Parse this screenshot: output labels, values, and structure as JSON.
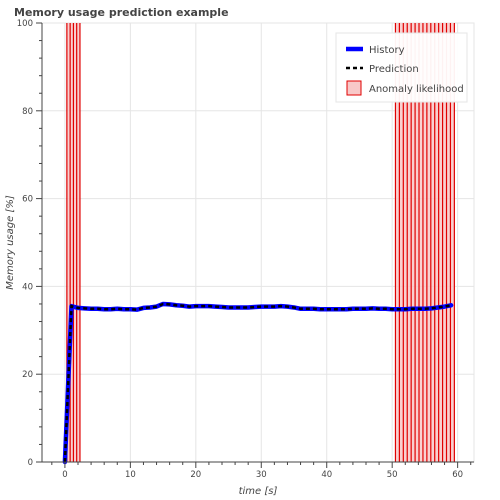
{
  "chart_data": {
    "type": "line",
    "title": "Memory usage prediction example",
    "xlabel": "time [s]",
    "ylabel": "Memory usage [%]",
    "xlim": [
      -3.5,
      62.5
    ],
    "ylim": [
      0,
      100
    ],
    "x_ticks": [
      0,
      10,
      20,
      30,
      40,
      50,
      60
    ],
    "y_ticks": [
      0,
      20,
      40,
      60,
      80,
      100
    ],
    "grid": true,
    "legend_position": "top-right",
    "series": [
      {
        "name": "History",
        "kind": "line",
        "color": "#0000ff",
        "x": [
          0,
          1,
          2,
          3,
          4,
          5,
          6,
          7,
          8,
          9,
          10,
          11,
          12,
          13,
          14,
          15,
          16,
          17,
          18,
          19,
          20,
          21,
          22,
          23,
          24,
          25,
          26,
          27,
          28,
          29,
          30,
          31,
          32,
          33,
          34,
          35,
          36,
          37,
          38,
          39,
          40,
          41,
          42,
          43,
          44,
          45,
          46,
          47,
          48,
          49,
          50,
          51,
          52,
          53,
          54,
          55,
          56,
          57,
          58,
          59
        ],
        "y": [
          0,
          35.5,
          35.1,
          35.0,
          34.9,
          34.9,
          34.8,
          34.8,
          34.9,
          34.8,
          34.8,
          34.7,
          35.1,
          35.2,
          35.4,
          36.0,
          35.9,
          35.7,
          35.6,
          35.4,
          35.5,
          35.5,
          35.5,
          35.4,
          35.3,
          35.2,
          35.2,
          35.2,
          35.2,
          35.3,
          35.4,
          35.4,
          35.4,
          35.5,
          35.4,
          35.2,
          34.9,
          34.9,
          34.9,
          34.8,
          34.8,
          34.8,
          34.8,
          34.8,
          34.9,
          34.9,
          34.9,
          35.0,
          34.9,
          34.9,
          34.8,
          34.8,
          34.8,
          34.9,
          34.9,
          34.9,
          35.0,
          35.2,
          35.4,
          35.7
        ]
      },
      {
        "name": "Prediction",
        "kind": "dashed-line",
        "color": "#000000",
        "x": [
          0,
          1,
          2,
          3,
          4,
          5,
          6,
          7,
          8,
          9,
          10,
          11,
          12,
          13,
          14,
          15,
          16,
          17,
          18,
          19,
          20,
          21,
          22,
          23,
          24,
          25,
          26,
          27,
          28,
          29,
          30,
          31,
          32,
          33,
          34,
          35,
          36,
          37,
          38,
          39,
          40,
          41,
          42,
          43,
          44,
          45,
          46,
          47,
          48,
          49,
          50,
          51,
          52,
          53,
          54,
          55,
          56,
          57,
          58,
          59
        ],
        "y": [
          0,
          35.5,
          35.1,
          35.0,
          34.9,
          34.9,
          34.8,
          34.8,
          34.9,
          34.8,
          34.8,
          34.7,
          35.1,
          35.2,
          35.4,
          36.0,
          35.9,
          35.7,
          35.6,
          35.4,
          35.5,
          35.5,
          35.5,
          35.4,
          35.3,
          35.2,
          35.2,
          35.2,
          35.2,
          35.3,
          35.4,
          35.4,
          35.4,
          35.5,
          35.4,
          35.2,
          34.9,
          34.9,
          34.9,
          34.8,
          34.8,
          34.8,
          34.8,
          34.8,
          34.9,
          34.9,
          34.9,
          35.0,
          34.9,
          34.9,
          34.8,
          34.8,
          34.8,
          34.9,
          34.9,
          34.9,
          35.0,
          35.2,
          35.4,
          35.7
        ]
      },
      {
        "name": "Anomaly likelihood",
        "kind": "vertical-bands",
        "fill_color": "#f8c8c8",
        "edge_color": "#e00000",
        "band_edges": [
          0.3,
          0.8,
          1.3,
          1.8,
          2.3,
          50.5,
          51.1,
          51.7,
          52.3,
          52.9,
          53.5,
          54.1,
          54.7,
          55.3,
          55.9,
          56.5,
          57.1,
          57.7,
          58.3,
          58.9,
          59.5
        ],
        "spans": [
          [
            0.3,
            2.3
          ],
          [
            50.5,
            59.5
          ]
        ]
      }
    ]
  }
}
